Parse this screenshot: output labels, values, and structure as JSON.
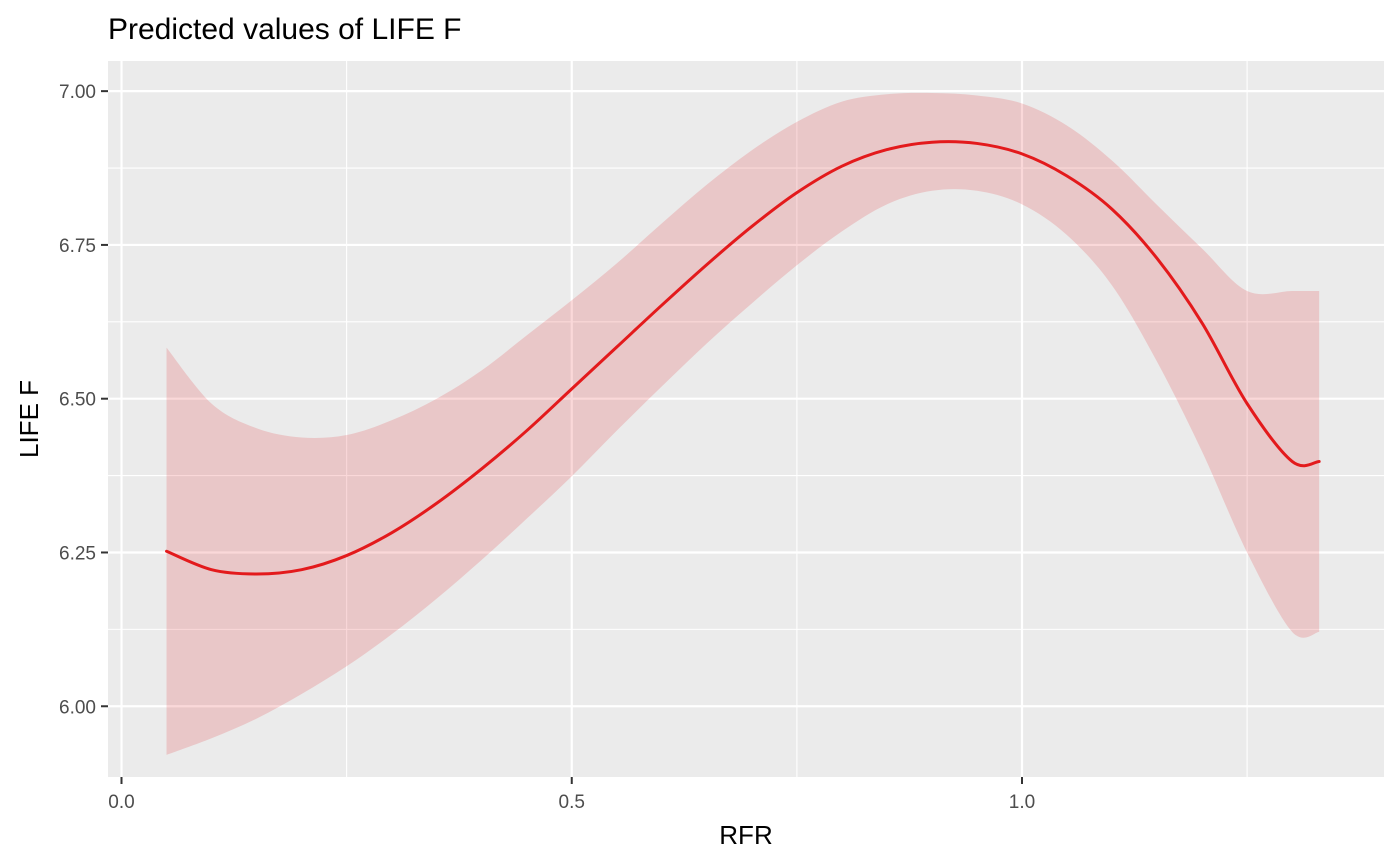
{
  "chart_data": {
    "type": "line",
    "title": "Predicted values of LIFE F",
    "xlabel": "RFR",
    "ylabel": "LIFE F",
    "xlim": [
      -0.015,
      1.402
    ],
    "ylim": [
      5.885,
      7.049
    ],
    "x_ticks": [
      {
        "value": 0.0,
        "label": "0.0"
      },
      {
        "value": 0.5,
        "label": "0.5"
      },
      {
        "value": 1.0,
        "label": "1.0"
      }
    ],
    "x_minor_ticks": [
      0.25,
      0.75,
      1.25
    ],
    "y_ticks": [
      {
        "value": 6.0,
        "label": "6.00"
      },
      {
        "value": 6.25,
        "label": "6.25"
      },
      {
        "value": 6.5,
        "label": "6.50"
      },
      {
        "value": 6.75,
        "label": "6.75"
      },
      {
        "value": 7.0,
        "label": "7.00"
      }
    ],
    "y_minor_ticks": [
      6.125,
      6.375,
      6.625,
      6.875
    ],
    "grid": true,
    "legend": "none",
    "colors": {
      "line": "#e31a1c",
      "ribbon": "#e31a1c",
      "panel": "#ebebeb",
      "grid": "#ffffff"
    },
    "series": [
      {
        "x": [
          0.05,
          0.1,
          0.15,
          0.2,
          0.25,
          0.3,
          0.35,
          0.4,
          0.45,
          0.5,
          0.55,
          0.6,
          0.65,
          0.7,
          0.75,
          0.8,
          0.85,
          0.9,
          0.95,
          1.0,
          1.05,
          1.1,
          1.15,
          1.2,
          1.25,
          1.3,
          1.33
        ],
        "y": [
          6.252,
          6.222,
          6.215,
          6.222,
          6.245,
          6.282,
          6.33,
          6.386,
          6.448,
          6.516,
          6.584,
          6.652,
          6.718,
          6.78,
          6.835,
          6.878,
          6.905,
          6.917,
          6.915,
          6.898,
          6.862,
          6.808,
          6.728,
          6.623,
          6.492,
          6.398,
          6.398
        ],
        "lower": [
          5.921,
          5.948,
          5.98,
          6.02,
          6.065,
          6.117,
          6.175,
          6.238,
          6.305,
          6.374,
          6.448,
          6.52,
          6.59,
          6.655,
          6.717,
          6.772,
          6.816,
          6.838,
          6.838,
          6.816,
          6.766,
          6.684,
          6.56,
          6.414,
          6.25,
          6.121,
          6.121
        ],
        "upper": [
          6.583,
          6.492,
          6.452,
          6.437,
          6.441,
          6.465,
          6.5,
          6.546,
          6.603,
          6.66,
          6.72,
          6.785,
          6.848,
          6.904,
          6.95,
          6.983,
          6.995,
          6.997,
          6.993,
          6.98,
          6.944,
          6.887,
          6.815,
          6.744,
          6.675,
          6.675,
          6.675
        ]
      }
    ]
  }
}
